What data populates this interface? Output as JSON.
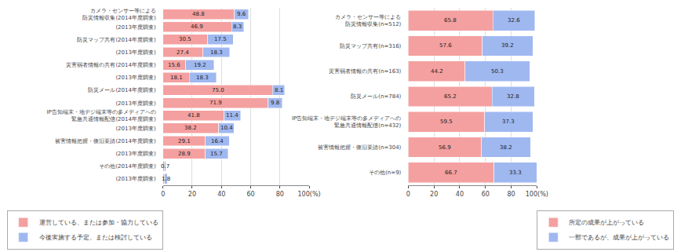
{
  "chart_data": [
    {
      "type": "bar",
      "orientation": "horizontal",
      "stacked": true,
      "categories": [
        "カメラ・センサー等による\n防災情報収集(2014年度調査)",
        "(2013年度調査)",
        "防災マップ共有(2014年度調査)",
        "(2013年度調査)",
        "災害弱者情報の共有(2014年度調査)",
        "(2013年度調査)",
        "防災メール(2014年度調査)",
        "(2013年度調査)",
        "IP告知端末・地デジ端末等の多メディアへの\n緊急共通情報配信(2014年度調査)",
        "(2013年度調査)",
        "被害情報把握・復旧要請(2014年度調査)",
        "(2013年度調査)",
        "その他(2014年度調査)",
        "(2013年度調査)"
      ],
      "series": [
        {
          "name": "運営している、または参加・協力している",
          "color": "#f4a0a0",
          "values": [
            48.8,
            46.9,
            30.5,
            27.4,
            15.6,
            18.1,
            75.0,
            71.9,
            41.8,
            38.2,
            29.1,
            28.9,
            1.1,
            1.2
          ],
          "value_labels": [
            "48.8",
            "46.9",
            "30.5",
            "27.4",
            "15.6",
            "18.1",
            "75.0",
            "71.9",
            "41.8",
            "38.2",
            "29.1",
            "28.9",
            null,
            null
          ]
        },
        {
          "name": "今後実施する予定、または検討している",
          "color": "#a0b8f0",
          "values": [
            9.6,
            8.3,
            17.5,
            18.3,
            19.2,
            18.3,
            8.1,
            9.8,
            11.4,
            10.4,
            16.4,
            15.7,
            0.7,
            1.8
          ],
          "value_labels": [
            "9.6",
            "8.3",
            "17.5",
            "18.3",
            "19.2",
            "18.3",
            "8.1",
            "9.8",
            "11.4",
            "10.4",
            "16.4",
            "15.7",
            "0.7",
            "1.8"
          ]
        }
      ],
      "xlim": [
        0,
        100
      ],
      "xticks": [
        0,
        20,
        40,
        60,
        80,
        {
          "value": 100,
          "label": "100(%)"
        }
      ],
      "grid": true,
      "data_labels": true,
      "legend": "lower left"
    },
    {
      "type": "bar",
      "orientation": "horizontal",
      "stacked": true,
      "categories": [
        "カメラ・センサー等による\n防災情報収集(n=512)",
        "防災マップ共有(n=316)",
        "災害弱者情報の共有(n=163)",
        "防災メール(n=784)",
        "IP告知端末・地デジ端末等の多メディアへの\n緊急共通情報配信(n=432)",
        "被害情報把握・復旧要請(n=304)",
        "その他(n=9)"
      ],
      "series": [
        {
          "name": "所定の成果が上がっている",
          "color": "#f4a0a0",
          "values": [
            65.8,
            57.6,
            44.2,
            65.2,
            59.5,
            56.9,
            66.7
          ]
        },
        {
          "name": "一部であるが、成果が上がっている",
          "color": "#a0b8f0",
          "values": [
            32.6,
            39.2,
            50.3,
            32.8,
            37.3,
            38.2,
            33.3
          ]
        }
      ],
      "xlim": [
        0,
        100
      ],
      "xticks": [
        0,
        20,
        40,
        60,
        80,
        {
          "value": 100,
          "label": "100(%)"
        }
      ],
      "grid": true,
      "data_labels": true,
      "legend": "lower right"
    }
  ]
}
